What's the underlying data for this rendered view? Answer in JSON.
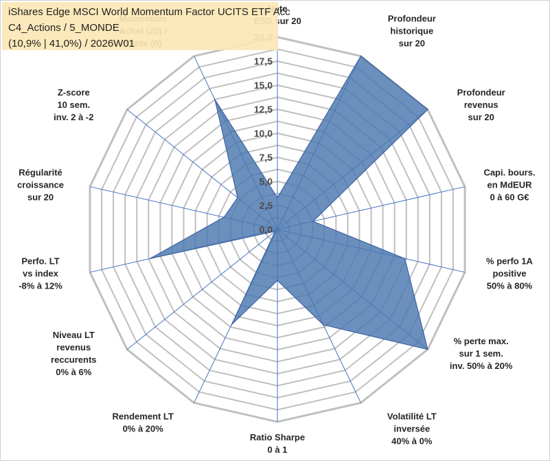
{
  "title": {
    "line1": "iShares Edge MSCI World Momentum Factor UCITS ETF Acc",
    "line2": "C4_Actions / 5_MONDE",
    "line3": "(10,9% | 41,0%) / 2026W01"
  },
  "colors": {
    "fill": "#4a78b0",
    "stroke": "#3d63a0",
    "grid": "#bfbfbf",
    "spoke": "#4472c4",
    "title_bg": "#fbe7b5"
  },
  "chart_data": {
    "type": "radar",
    "title": "iShares Edge MSCI World Momentum Factor UCITS ETF Acc",
    "rmin": 0,
    "rmax": 20,
    "ticks": [
      "0,0",
      "2,5",
      "5,0",
      "7,5",
      "10,0",
      "12,5",
      "15,0",
      "17,5",
      "20,0"
    ],
    "tick_values": [
      0,
      2.5,
      5,
      7.5,
      10,
      12.5,
      15,
      17.5,
      20
    ],
    "axes": [
      {
        "label": [
          "Note",
          "ESG sur 20"
        ],
        "value": 3.3
      },
      {
        "label": [
          "Profondeur",
          "historique",
          "sur 20"
        ],
        "value": 20
      },
      {
        "label": [
          "Profondeur",
          "revenus",
          "sur 20"
        ],
        "value": 20
      },
      {
        "label": [
          "Capi. bours.",
          "en MdEUR",
          "0 à 60 G€"
        ],
        "value": 3.8
      },
      {
        "label": [
          "% perfo 1A",
          "positive",
          "50% à 80%"
        ],
        "value": 13.6
      },
      {
        "label": [
          "% perte max.",
          "sur 1 sem.",
          "inv. 50% à 20%"
        ],
        "value": 20
      },
      {
        "label": [
          "Volatilité LT",
          "inversée",
          "40% à 0%"
        ],
        "value": 11
      },
      {
        "label": [
          "Ratio Sharpe",
          "0 à 1"
        ],
        "value": 5.3
      },
      {
        "label": [
          "Rendement LT",
          "0% à 20%"
        ],
        "value": 11
      },
      {
        "label": [
          "Niveau LT",
          "revenus",
          "reccurents",
          "0% à 6%"
        ],
        "value": 0.3
      },
      {
        "label": [
          "Perfo. LT",
          "vs index",
          "-8% à 12%"
        ],
        "value": 13.6
      },
      {
        "label": [
          "Régularité",
          "croissance",
          "sur 20"
        ],
        "value": 5.7
      },
      {
        "label": [
          "Z-score",
          "10 sem.",
          "inv. 2 à -2"
        ],
        "value": 5.3
      },
      {
        "label": [
          "Momentum",
          "Achat (20) /",
          "Vente (0)"
        ],
        "value": 15
      }
    ]
  }
}
